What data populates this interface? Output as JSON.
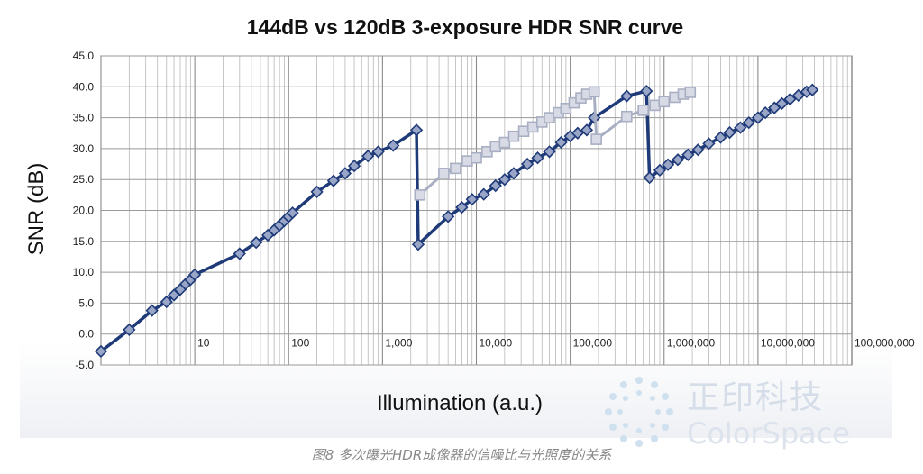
{
  "chart_data": {
    "type": "line",
    "title": "144dB vs 120dB 3-exposure HDR SNR curve",
    "xlabel": "Illumination (a.u.)",
    "ylabel": "SNR (dB)",
    "xscale": "log",
    "xlim": [
      1,
      100000000
    ],
    "ylim": [
      -5,
      45
    ],
    "ytick_labels": [
      "-5.0",
      "0.0",
      "5.0",
      "10.0",
      "15.0",
      "20.0",
      "25.0",
      "30.0",
      "35.0",
      "40.0",
      "45.0"
    ],
    "xtick_labels": [
      {
        "value": 10,
        "label": "10"
      },
      {
        "value": 100,
        "label": "100"
      },
      {
        "value": 1000,
        "label": "1,000"
      },
      {
        "value": 10000,
        "label": "10,000"
      },
      {
        "value": 100000,
        "label": "100,000"
      },
      {
        "value": 1000000,
        "label": "1,000,000"
      },
      {
        "value": 10000000,
        "label": "10,000,000"
      },
      {
        "value": 100000000,
        "label": "100,000,000"
      }
    ],
    "grid": true,
    "legend": "none",
    "series": [
      {
        "color": "#1f3a78",
        "marker": "diamond",
        "points": [
          [
            1,
            -2.8
          ],
          [
            2,
            0.7
          ],
          [
            3.5,
            3.8
          ],
          [
            5,
            5.2
          ],
          [
            6,
            6.3
          ],
          [
            7,
            7.2
          ],
          [
            8,
            8.1
          ],
          [
            9,
            8.8
          ],
          [
            10,
            9.6
          ],
          [
            30,
            13
          ],
          [
            45,
            14.8
          ],
          [
            60,
            16
          ],
          [
            70,
            16.8
          ],
          [
            80,
            17.6
          ],
          [
            90,
            18.3
          ],
          [
            100,
            19
          ],
          [
            110,
            19.6
          ],
          [
            200,
            23
          ],
          [
            300,
            24.8
          ],
          [
            400,
            26
          ],
          [
            500,
            27.2
          ],
          [
            700,
            28.8
          ],
          [
            900,
            29.5
          ],
          [
            1300,
            30.5
          ],
          [
            2300,
            33
          ],
          [
            2400,
            14.5
          ],
          [
            5000,
            19
          ],
          [
            7000,
            20.5
          ],
          [
            9000,
            21.8
          ],
          [
            12000,
            22.6
          ],
          [
            16000,
            24
          ],
          [
            20000,
            25
          ],
          [
            25000,
            26
          ],
          [
            35000,
            27.5
          ],
          [
            45000,
            28.5
          ],
          [
            60000,
            29.5
          ],
          [
            80000,
            31
          ],
          [
            100000,
            32
          ],
          [
            120000,
            32.5
          ],
          [
            150000,
            33
          ],
          [
            180000,
            35
          ],
          [
            400000,
            38.5
          ],
          [
            650000,
            39.3
          ],
          [
            700000,
            25.3
          ],
          [
            900000,
            26.5
          ],
          [
            1100000,
            27.4
          ],
          [
            1400000,
            28.2
          ],
          [
            1800000,
            29
          ],
          [
            2300000,
            29.8
          ],
          [
            3000000,
            30.8
          ],
          [
            4000000,
            31.8
          ],
          [
            5000000,
            32.6
          ],
          [
            6500000,
            33.4
          ],
          [
            8000000,
            34.2
          ],
          [
            10000000,
            35
          ],
          [
            12000000,
            35.8
          ],
          [
            15000000,
            36.6
          ],
          [
            18000000,
            37.3
          ],
          [
            22000000,
            38
          ],
          [
            27000000,
            38.6
          ],
          [
            33000000,
            39.2
          ],
          [
            38000000,
            39.5
          ]
        ]
      },
      {
        "color": "#a9afc3",
        "marker": "square",
        "points": [
          [
            2500,
            22.5
          ],
          [
            4500,
            26
          ],
          [
            6000,
            26.8
          ],
          [
            8000,
            28
          ],
          [
            10000,
            28.5
          ],
          [
            13000,
            29.5
          ],
          [
            16000,
            30.3
          ],
          [
            20000,
            31
          ],
          [
            25000,
            32
          ],
          [
            32000,
            32.8
          ],
          [
            40000,
            33.5
          ],
          [
            50000,
            34.3
          ],
          [
            60000,
            35
          ],
          [
            75000,
            35.8
          ],
          [
            90000,
            36.5
          ],
          [
            110000,
            37.4
          ],
          [
            130000,
            38.2
          ],
          [
            150000,
            38.8
          ],
          [
            180000,
            39.2
          ],
          [
            190000,
            31.5
          ],
          [
            400000,
            35.2
          ],
          [
            600000,
            36.2
          ],
          [
            800000,
            37
          ],
          [
            1000000,
            37.6
          ],
          [
            1300000,
            38.3
          ],
          [
            1600000,
            38.8
          ],
          [
            1900000,
            39.1
          ]
        ]
      }
    ]
  },
  "caption": "图8 多次曝光HDR成像器的信噪比与光照度的关系",
  "watermark": {
    "line1": "正印科技",
    "line2": "ColorSpace"
  }
}
